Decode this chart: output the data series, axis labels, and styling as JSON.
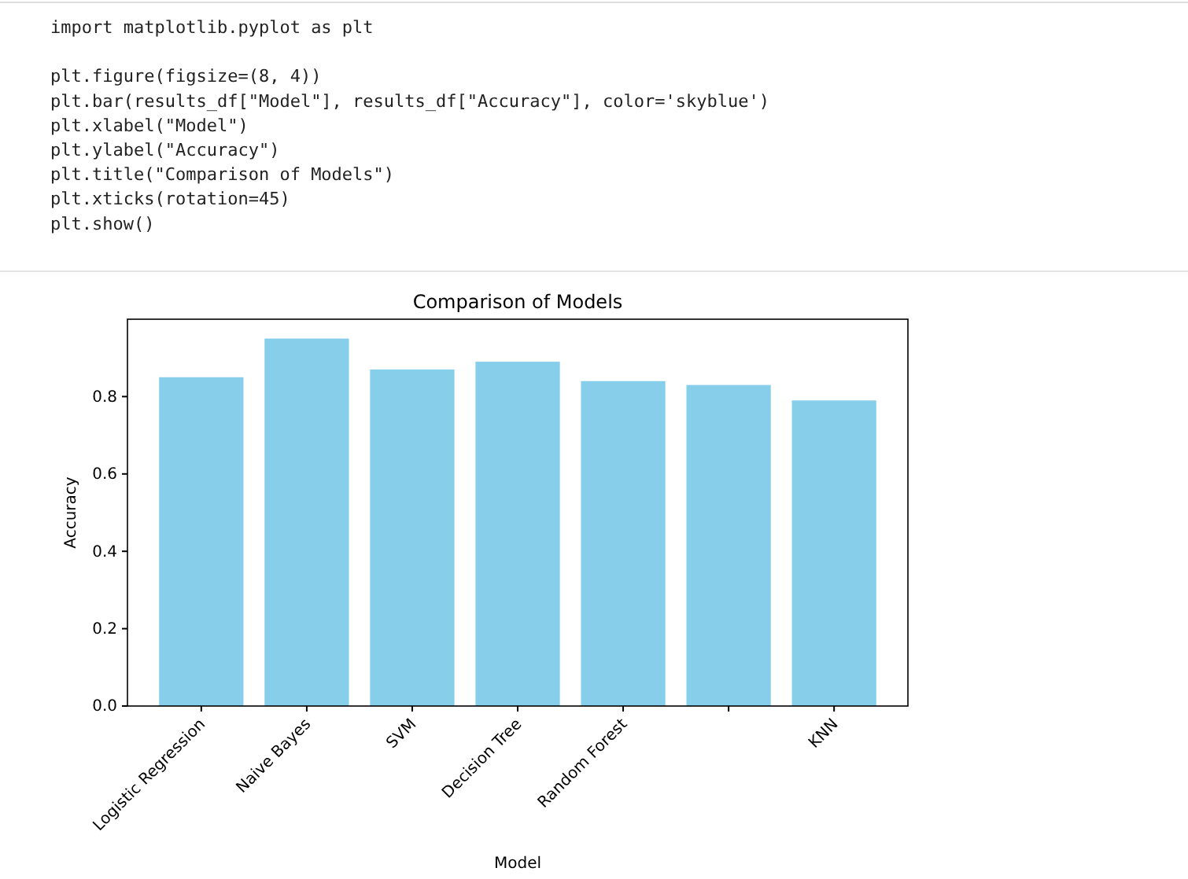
{
  "chart_data": {
    "type": "bar",
    "title": "Comparison of Models",
    "xlabel": "Model",
    "ylabel": "Accuracy",
    "categories": [
      "Logistic Regression",
      "Naive Bayes",
      "SVM",
      "Decision Tree",
      "Random Forest",
      null,
      "KNN"
    ],
    "values": [
      0.85,
      0.95,
      0.87,
      0.89,
      0.84,
      0.83,
      0.79
    ],
    "color": "#87ceeb",
    "ylim": [
      0,
      1.0
    ],
    "yticks": [
      {
        "value": 0,
        "label": "0.0"
      },
      0.2,
      0.4,
      0.6,
      0.8
    ],
    "grid": false,
    "annotations": [
      "import matplotlib.pyplot as plt",
      "plt.figure(figsize=(8, 4))",
      "plt.bar(results_df[\"Model\"], results_df[\"Accuracy\"], color='skyblue')",
      "plt.xlabel(\"Model\")",
      "plt.ylabel(\"Accuracy\")",
      "plt.title(\"Comparison of Models\")",
      "plt.xticks(rotation=45)",
      "plt.show()"
    ]
  }
}
